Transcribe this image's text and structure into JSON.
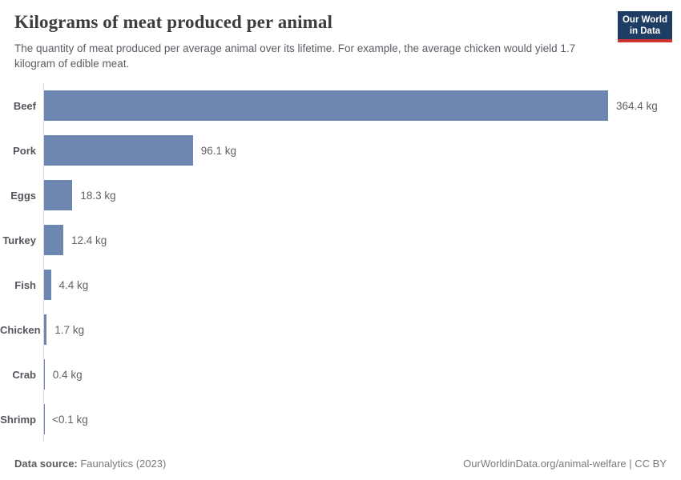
{
  "header": {
    "title": "Kilograms of meat produced per animal",
    "subtitle": "The quantity of meat produced per average animal over its lifetime. For example, the average chicken would yield 1.7 kilogram of edible meat.",
    "logo": {
      "line1": "Our World",
      "line2": "in Data",
      "bg_color": "#1d3d63",
      "stripe_color": "#cf352e"
    }
  },
  "chart_data": {
    "type": "bar",
    "orientation": "horizontal",
    "title": "Kilograms of meat produced per animal",
    "categories": [
      "Beef",
      "Pork",
      "Eggs",
      "Turkey",
      "Fish",
      "Chicken",
      "Crab",
      "Shrimp"
    ],
    "values": [
      364.4,
      96.1,
      18.3,
      12.4,
      4.4,
      1.7,
      0.4,
      0.05
    ],
    "value_labels": [
      "364.4 kg",
      "96.1 kg",
      "18.3 kg",
      "12.4 kg",
      "4.4 kg",
      "1.7 kg",
      "0.4 kg",
      "<0.1 kg"
    ],
    "unit": "kg",
    "xlim": [
      0,
      364.4
    ],
    "grid": false,
    "legend": false,
    "bar_color": "#6d87b0",
    "axis_line_color": "#d4d9de"
  },
  "footer": {
    "source_label": "Data source:",
    "source_value": " Faunalytics (2023)",
    "credit": "OurWorldinData.org/animal-welfare | CC BY"
  }
}
